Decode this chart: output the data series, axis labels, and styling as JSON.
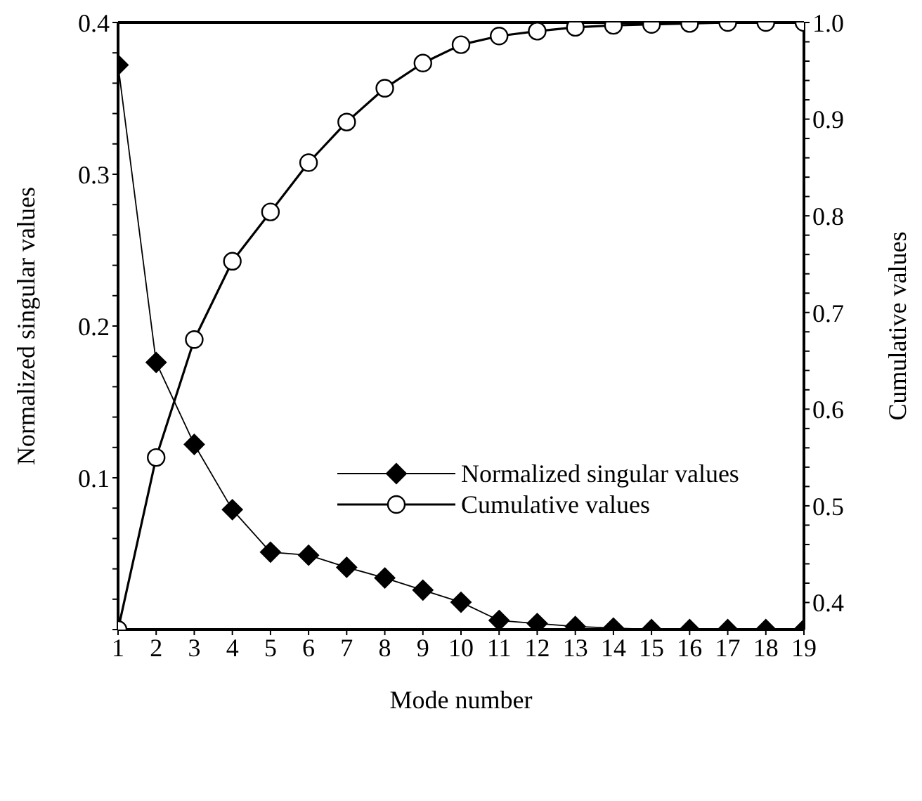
{
  "chart_data": {
    "type": "line",
    "xlabel": "Mode number",
    "ylabel": "Normalized singular values",
    "y2label": "Cumulative values",
    "x": [
      1,
      2,
      3,
      4,
      5,
      6,
      7,
      8,
      9,
      10,
      11,
      12,
      13,
      14,
      15,
      16,
      17,
      18,
      19
    ],
    "xlim": [
      1,
      19
    ],
    "xticks": [
      1,
      2,
      3,
      4,
      5,
      6,
      7,
      8,
      9,
      10,
      11,
      12,
      13,
      14,
      15,
      16,
      17,
      18,
      19
    ],
    "ylim": [
      0,
      0.4
    ],
    "yticks": [
      {
        "value": 0,
        "label": null
      },
      {
        "value": 0.02,
        "label": null
      },
      {
        "value": 0.04,
        "label": null
      },
      {
        "value": 0.06,
        "label": null
      },
      {
        "value": 0.08,
        "label": null
      },
      0.1,
      {
        "value": 0.12,
        "label": null
      },
      {
        "value": 0.14,
        "label": null
      },
      {
        "value": 0.16,
        "label": null
      },
      {
        "value": 0.18,
        "label": null
      },
      0.2,
      {
        "value": 0.22,
        "label": null
      },
      {
        "value": 0.24,
        "label": null
      },
      {
        "value": 0.26,
        "label": null
      },
      {
        "value": 0.28,
        "label": null
      },
      0.3,
      {
        "value": 0.32,
        "label": null
      },
      {
        "value": 0.34,
        "label": null
      },
      {
        "value": 0.36,
        "label": null
      },
      {
        "value": 0.38,
        "label": null
      },
      0.4
    ],
    "y2lim": [
      0.372,
      1.0
    ],
    "y2ticks": [
      0.4,
      {
        "value": 0.42,
        "label": null
      },
      {
        "value": 0.44,
        "label": null
      },
      {
        "value": 0.46,
        "label": null
      },
      {
        "value": 0.48,
        "label": null
      },
      0.5,
      {
        "value": 0.52,
        "label": null
      },
      {
        "value": 0.54,
        "label": null
      },
      {
        "value": 0.56,
        "label": null
      },
      {
        "value": 0.58,
        "label": null
      },
      0.6,
      {
        "value": 0.62,
        "label": null
      },
      {
        "value": 0.64,
        "label": null
      },
      {
        "value": 0.66,
        "label": null
      },
      {
        "value": 0.68,
        "label": null
      },
      0.7,
      {
        "value": 0.72,
        "label": null
      },
      {
        "value": 0.74,
        "label": null
      },
      {
        "value": 0.76,
        "label": null
      },
      {
        "value": 0.78,
        "label": null
      },
      0.8,
      {
        "value": 0.82,
        "label": null
      },
      {
        "value": 0.84,
        "label": null
      },
      {
        "value": 0.86,
        "label": null
      },
      {
        "value": 0.88,
        "label": null
      },
      0.9,
      {
        "value": 0.92,
        "label": null
      },
      {
        "value": 0.94,
        "label": null
      },
      {
        "value": 0.96,
        "label": null
      },
      {
        "value": 0.98,
        "label": null
      },
      {
        "value": 1.0,
        "label": "1.0"
      }
    ],
    "series": [
      {
        "name": "Normalized singular values",
        "color": "#000000",
        "marker": "diamond",
        "values": [
          0.372,
          0.176,
          0.122,
          0.079,
          0.051,
          0.049,
          0.041,
          0.034,
          0.026,
          0.018,
          0.006,
          0.004,
          0.002,
          0.001,
          0,
          0,
          0,
          0,
          0
        ]
      },
      {
        "name": "Cumulative values",
        "color": "#000000",
        "marker": "circle",
        "axis": "y2",
        "values": [
          0.372,
          0.55,
          0.672,
          0.753,
          0.804,
          0.855,
          0.897,
          0.932,
          0.958,
          0.977,
          0.986,
          0.991,
          0.995,
          0.997,
          0.998,
          0.999,
          1.0,
          1.0,
          1.0
        ]
      }
    ],
    "legend": "right",
    "grid": false,
    "line_style": "solid"
  }
}
